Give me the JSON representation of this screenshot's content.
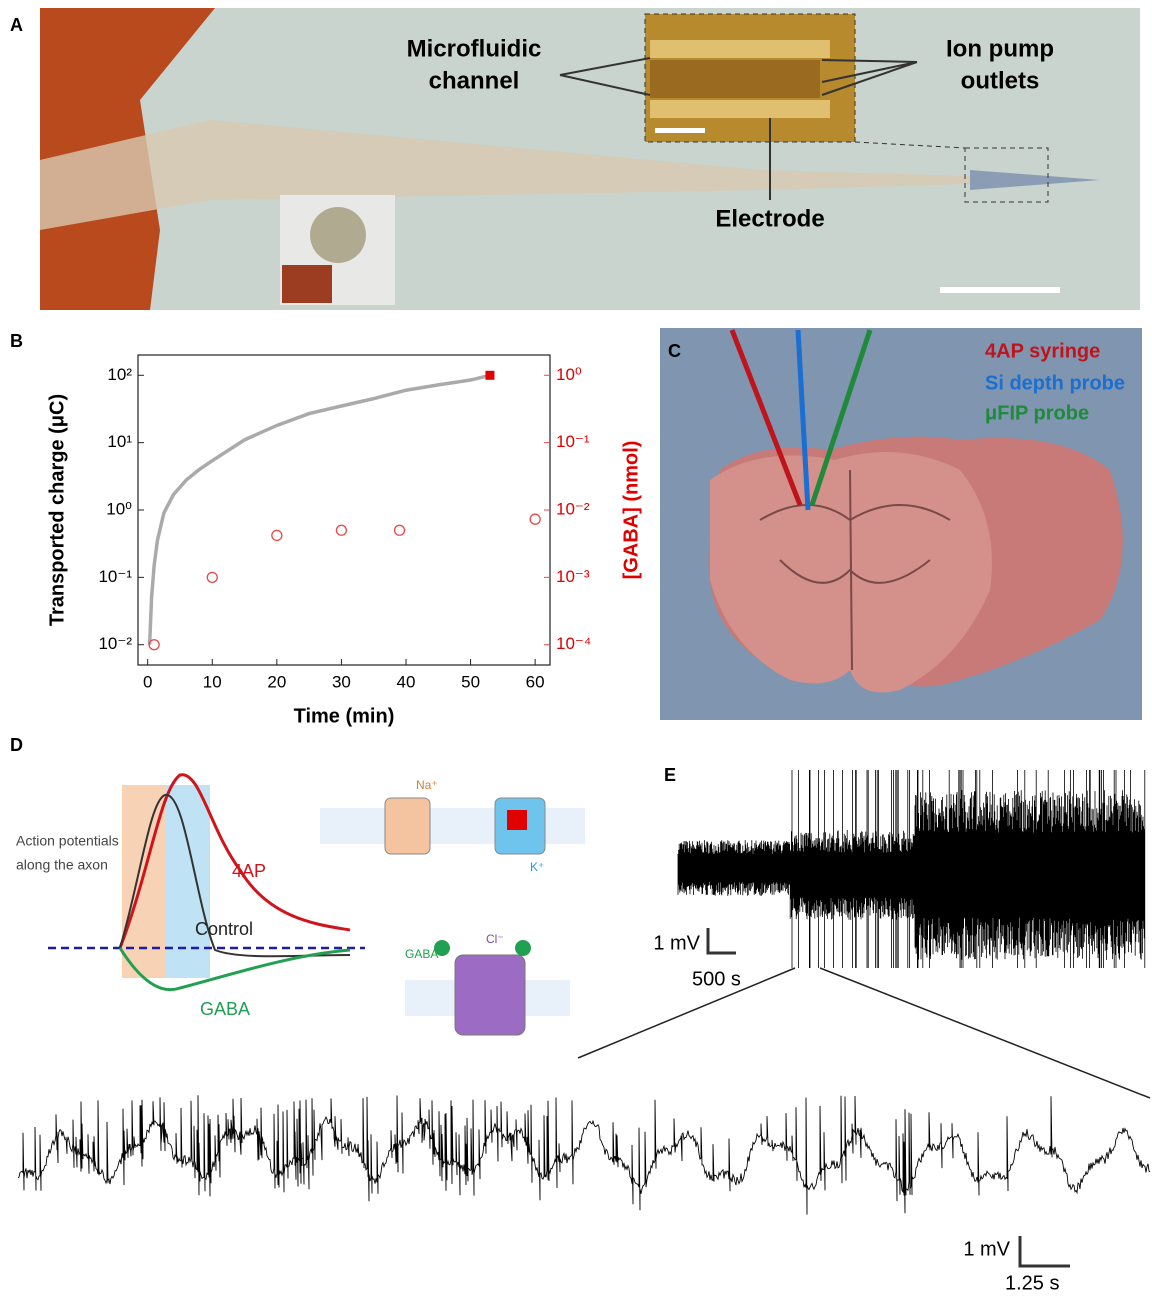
{
  "panel_labels": {
    "a": "A",
    "b": "B",
    "c": "C",
    "d": "D",
    "e": "E"
  },
  "panel_a": {
    "microfluidic_channel": [
      "Microfluidic",
      "channel"
    ],
    "ion_pump_outlets": [
      "Ion pump",
      "outlets"
    ],
    "electrode": "Electrode"
  },
  "panel_c": {
    "labels": [
      "4AP syringe",
      "Si depth probe",
      "μFIP probe"
    ]
  },
  "panel_d": {
    "axon_label": [
      "Action potentials",
      "along the axon"
    ],
    "curves": {
      "ap4": "4AP",
      "control": "Control",
      "gaba": "GABA"
    },
    "ions": {
      "na": "Na⁺",
      "k": "K⁺",
      "cl": "Cl⁻",
      "gaba": "GABA"
    }
  },
  "panel_e": {
    "scale_top": {
      "v": "1 mV",
      "t": "500 s"
    },
    "scale_bottom": {
      "v": "1 mV",
      "t": "1.25 s"
    }
  },
  "chart_data": {
    "type": "line",
    "x_label": "Time (min)",
    "y_label": "Transported charge (μC)",
    "y2_label": "[GABA] (nmol)",
    "xlim": [
      -1.5,
      62.3
    ],
    "xticks": [
      0,
      10,
      20,
      30,
      40,
      50,
      60
    ],
    "ylim": [
      0.005,
      200
    ],
    "y_scale": "log",
    "yticks": [
      {
        "value": 0.01,
        "label": "10⁻²"
      },
      {
        "value": 0.1,
        "label": "10⁻¹"
      },
      {
        "value": 1,
        "label": "10⁰"
      },
      {
        "value": 10,
        "label": "10¹"
      },
      {
        "value": 100,
        "label": "10²"
      }
    ],
    "y2lim": [
      5e-05,
      2
    ],
    "y2ticks": [
      {
        "value": 0.0001,
        "label": "10⁻⁴"
      },
      {
        "value": 0.001,
        "label": "10⁻³"
      },
      {
        "value": 0.01,
        "label": "10⁻²"
      },
      {
        "value": 0.1,
        "label": "10⁻¹"
      },
      {
        "value": 1,
        "label": "10⁰"
      }
    ],
    "series": [
      {
        "type": "line",
        "color": "#aaaaaa",
        "x": [
          0.3,
          0.6,
          1,
          1.5,
          2.5,
          4,
          6,
          8,
          10,
          15,
          20,
          25,
          30,
          35,
          40,
          45,
          50,
          53
        ],
        "values": [
          0.01,
          0.05,
          0.15,
          0.35,
          0.9,
          1.7,
          2.8,
          4,
          5.4,
          11,
          18,
          27,
          35,
          45,
          60,
          72,
          85,
          100
        ]
      },
      {
        "type": "scatter",
        "marker": "open-circle",
        "axis": "y2",
        "color": "#e8474a",
        "x": [
          1,
          10,
          20,
          30,
          39,
          60
        ],
        "values": [
          0.0001,
          0.001,
          0.0042,
          0.005,
          0.005,
          0.0073
        ]
      },
      {
        "type": "scatter",
        "marker": "square",
        "axis": "y2",
        "color": "#e00000",
        "x": [
          53
        ],
        "values": [
          1
        ]
      }
    ]
  }
}
